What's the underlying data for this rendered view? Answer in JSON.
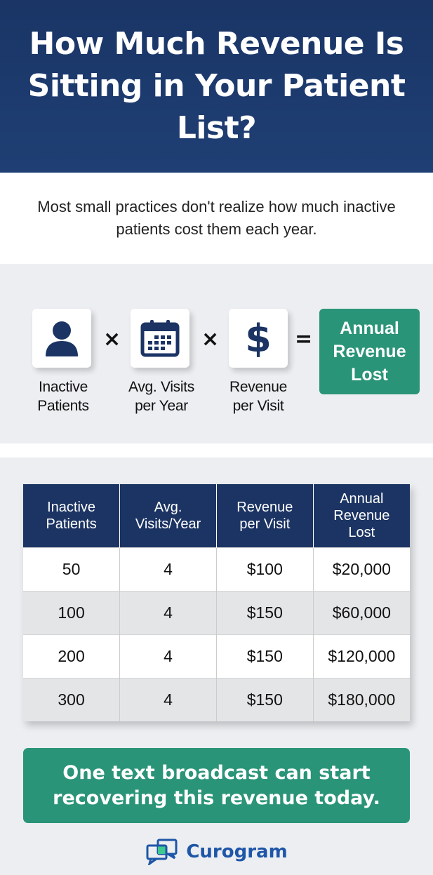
{
  "header": {
    "title": "How Much Revenue Is Sitting in Your Patient List?"
  },
  "subtitle": "Most small practices don't realize how much inactive patients cost them each year.",
  "formula": {
    "items": [
      {
        "icon": "person-icon",
        "label_line1": "Inactive",
        "label_line2": "Patients"
      },
      {
        "icon": "calendar-icon",
        "label_line1": "Avg. Visits",
        "label_line2": "per Year"
      },
      {
        "icon": "dollar-icon",
        "label_line1": "Revenue",
        "label_line2": "per Visit"
      }
    ],
    "times": "×",
    "equals": "=",
    "result_line1": "Annual",
    "result_line2": "Revenue",
    "result_line3": "Lost"
  },
  "table": {
    "headers": [
      [
        "Inactive",
        "Patients"
      ],
      [
        "Avg.",
        "Visits/Year"
      ],
      [
        "Revenue",
        "per Visit"
      ],
      [
        "Annual",
        "Revenue",
        "Lost"
      ]
    ],
    "rows": [
      [
        "50",
        "4",
        "$100",
        "$20,000"
      ],
      [
        "100",
        "4",
        "$150",
        "$60,000"
      ],
      [
        "200",
        "4",
        "$150",
        "$120,000"
      ],
      [
        "300",
        "4",
        "$150",
        "$180,000"
      ]
    ]
  },
  "banner": {
    "line1": "One text broadcast can start",
    "line2": "recovering this revenue today."
  },
  "logo": {
    "name": "Curogram"
  },
  "colors": {
    "navy": "#1c3463",
    "green": "#2a9478",
    "logo_blue": "#1e56a8"
  }
}
